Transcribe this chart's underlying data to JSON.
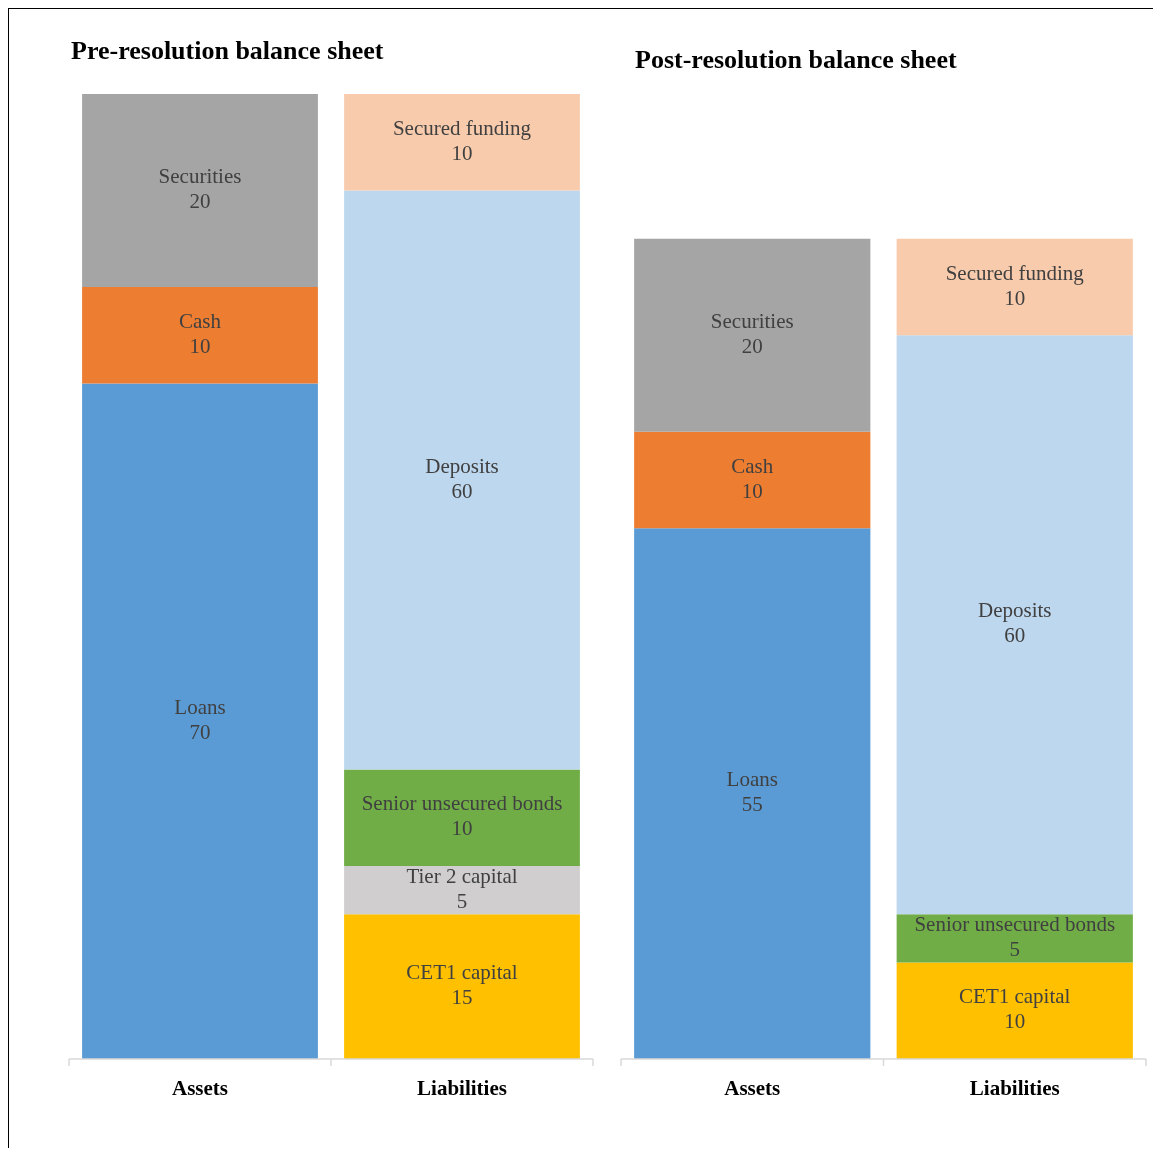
{
  "chart_data": [
    {
      "type": "bar",
      "title": "Pre-resolution balance sheet",
      "categories": [
        "Assets",
        "Liabilities"
      ],
      "stacked": true,
      "data_labels": true,
      "series": [
        {
          "name": "Loans",
          "color": "#5b9bd5",
          "values": [
            70,
            null
          ]
        },
        {
          "name": "Cash",
          "color": "#ed7d31",
          "values": [
            10,
            null
          ]
        },
        {
          "name": "Securities",
          "color": "#a5a5a5",
          "values": [
            20,
            null
          ]
        },
        {
          "name": "CET1 capital",
          "color": "#ffc000",
          "values": [
            null,
            15
          ]
        },
        {
          "name": "Tier 2 capital",
          "color": "#d0cece",
          "values": [
            null,
            5
          ]
        },
        {
          "name": "Senior unsecured bonds",
          "color": "#70ad47",
          "values": [
            null,
            10
          ]
        },
        {
          "name": "Deposits",
          "color": "#bdd7ee",
          "values": [
            null,
            60
          ]
        },
        {
          "name": "Secured funding",
          "color": "#f8cbad",
          "values": [
            null,
            10
          ]
        }
      ]
    },
    {
      "type": "bar",
      "title": "Post-resolution balance sheet",
      "categories": [
        "Assets",
        "Liabilities"
      ],
      "stacked": true,
      "data_labels": true,
      "series": [
        {
          "name": "Loans",
          "color": "#5b9bd5",
          "values": [
            55,
            null
          ]
        },
        {
          "name": "Cash",
          "color": "#ed7d31",
          "values": [
            10,
            null
          ]
        },
        {
          "name": "Securities",
          "color": "#a5a5a5",
          "values": [
            20,
            null
          ]
        },
        {
          "name": "CET1 capital",
          "color": "#ffc000",
          "values": [
            null,
            10
          ]
        },
        {
          "name": "Senior unsecured bonds",
          "color": "#70ad47",
          "values": [
            null,
            5
          ]
        },
        {
          "name": "Deposits",
          "color": "#bdd7ee",
          "values": [
            null,
            60
          ]
        },
        {
          "name": "Secured funding",
          "color": "#f8cbad",
          "values": [
            null,
            10
          ]
        }
      ]
    }
  ]
}
